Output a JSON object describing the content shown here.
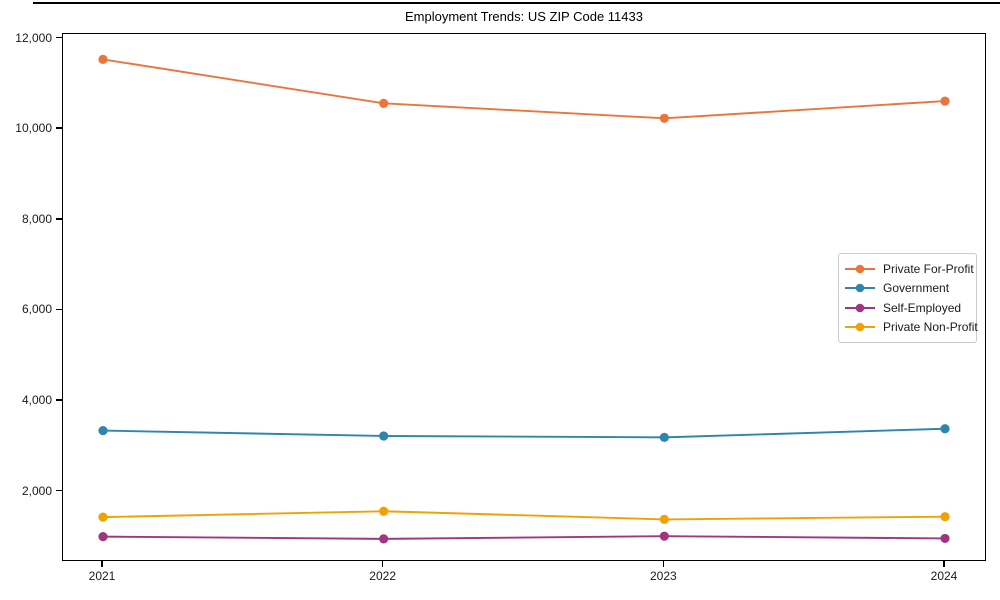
{
  "figure": {
    "background_color": "#ffffff",
    "axes_border_color": "#000000"
  },
  "chart_data": {
    "type": "line",
    "title": "Employment Trends: US ZIP Code 11433",
    "xlabel": "",
    "ylabel": "",
    "x": [
      2021,
      2022,
      2023,
      2024
    ],
    "xtick_labels": [
      "2021",
      "2022",
      "2023",
      "2024"
    ],
    "yticks": [
      2000,
      4000,
      6000,
      8000,
      10000,
      12000
    ],
    "ytick_labels": [
      "2,000",
      "4,000",
      "6,000",
      "8,000",
      "10,000",
      "12,000"
    ],
    "ylim": [
      450,
      12100
    ],
    "grid": false,
    "legend_position": "center-right",
    "marker": "circle",
    "series": [
      {
        "name": "Private For-Profit",
        "color": "#E8763C",
        "values": [
          11540,
          10570,
          10240,
          10620
        ]
      },
      {
        "name": "Government",
        "color": "#2E86AB",
        "values": [
          3350,
          3230,
          3200,
          3390
        ]
      },
      {
        "name": "Self-Employed",
        "color": "#A03681",
        "values": [
          1010,
          960,
          1020,
          970
        ]
      },
      {
        "name": "Private Non-Profit",
        "color": "#F2A104",
        "values": [
          1440,
          1570,
          1390,
          1450
        ]
      }
    ]
  }
}
